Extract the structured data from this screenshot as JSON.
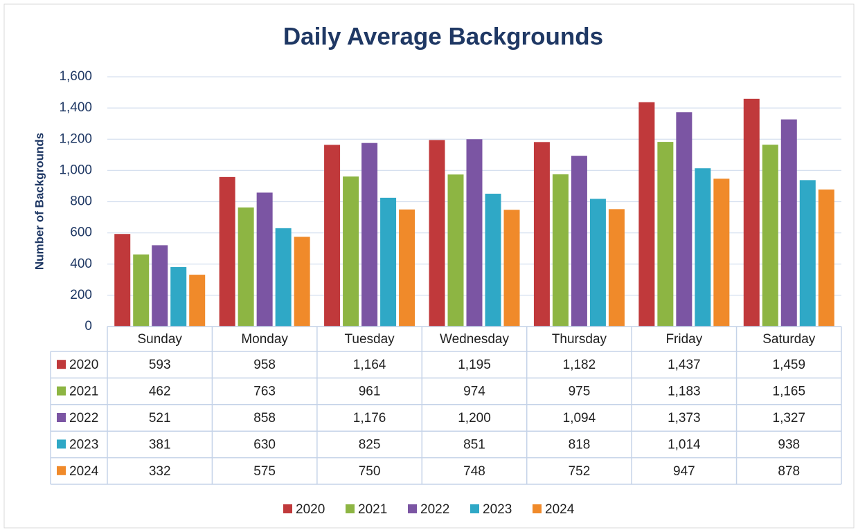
{
  "chart_data": {
    "type": "bar",
    "title": "Daily Average Backgrounds",
    "y_label": "Number of Backgrounds",
    "categories": [
      "Sunday",
      "Monday",
      "Tuesday",
      "Wednesday",
      "Thursday",
      "Friday",
      "Saturday"
    ],
    "series": [
      {
        "name": "2020",
        "color": "#c0393b",
        "values": [
          593,
          958,
          1164,
          1195,
          1182,
          1437,
          1459
        ],
        "value_labels": [
          "593",
          "958",
          "1,164",
          "1,195",
          "1,182",
          "1,437",
          "1,459"
        ]
      },
      {
        "name": "2021",
        "color": "#8db543",
        "values": [
          462,
          763,
          961,
          974,
          975,
          1183,
          1165
        ],
        "value_labels": [
          "462",
          "763",
          "961",
          "974",
          "975",
          "1,183",
          "1,165"
        ]
      },
      {
        "name": "2022",
        "color": "#7b55a3",
        "values": [
          521,
          858,
          1176,
          1200,
          1094,
          1373,
          1327
        ],
        "value_labels": [
          "521",
          "858",
          "1,176",
          "1,200",
          "1,094",
          "1,373",
          "1,327"
        ]
      },
      {
        "name": "2023",
        "color": "#2fa8c6",
        "values": [
          381,
          630,
          825,
          851,
          818,
          1014,
          938
        ],
        "value_labels": [
          "381",
          "630",
          "825",
          "851",
          "818",
          "1,014",
          "938"
        ]
      },
      {
        "name": "2024",
        "color": "#f08a2a",
        "values": [
          332,
          575,
          750,
          748,
          752,
          947,
          878
        ],
        "value_labels": [
          "332",
          "575",
          "750",
          "748",
          "752",
          "947",
          "878"
        ]
      }
    ],
    "ylim": [
      0,
      1600
    ],
    "yticks": [
      0,
      200,
      400,
      600,
      800,
      {
        "value": 1000,
        "label": "1,000"
      },
      {
        "value": 1200,
        "label": "1,200"
      },
      {
        "value": 1400,
        "label": "1,400"
      },
      {
        "value": 1600,
        "label": "1,600"
      }
    ],
    "grid": true,
    "legend": "bottom",
    "data_table": true
  }
}
